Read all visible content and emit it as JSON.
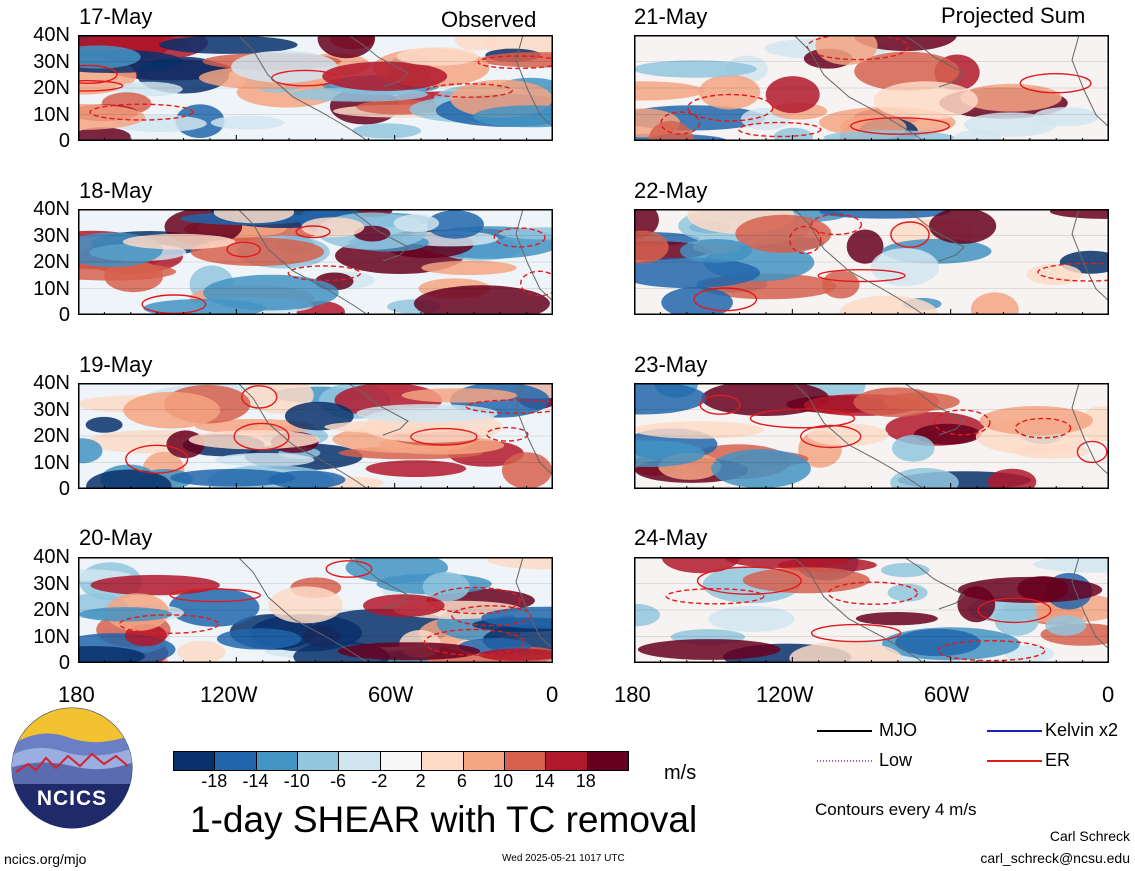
{
  "headers": {
    "observed": "Observed",
    "projected": "Projected Sum"
  },
  "panels": [
    {
      "date": "17-May"
    },
    {
      "date": "18-May"
    },
    {
      "date": "19-May"
    },
    {
      "date": "20-May"
    },
    {
      "date": "21-May"
    },
    {
      "date": "22-May"
    },
    {
      "date": "23-May"
    },
    {
      "date": "24-May"
    }
  ],
  "lat_ticks": [
    "40N",
    "30N",
    "20N",
    "10N",
    "0"
  ],
  "lon_ticks": [
    "180",
    "120W",
    "60W",
    "0"
  ],
  "colorbar": {
    "ticks": [
      "-18",
      "-14",
      "-10",
      "-6",
      "-2",
      "2",
      "6",
      "10",
      "14",
      "18"
    ],
    "colors": [
      "#08306b",
      "#2166ac",
      "#4393c3",
      "#92c5de",
      "#d1e5f0",
      "#f7f7f7",
      "#fddbc7",
      "#f4a582",
      "#d6604d",
      "#b2182b",
      "#67001f"
    ],
    "units": "m/s"
  },
  "title": "1-day SHEAR with TC removal",
  "legend": {
    "items": [
      {
        "label": "MJO",
        "color": "#000000",
        "style": "solid"
      },
      {
        "label": "Kelvin x2",
        "color": "#1f1fbf",
        "style": "solid"
      },
      {
        "label": "Low",
        "color": "#a855f7",
        "style": "dotted"
      },
      {
        "label": "ER",
        "color": "#e31a1c",
        "style": "solid"
      }
    ],
    "contours_note": "Contours every 4 m/s"
  },
  "logo": {
    "text": "NCICS"
  },
  "footer": {
    "url": "ncics.org/mjo",
    "timestamp": "Wed 2025-05-21 1017 UTC",
    "author": "Carl Schreck",
    "email": "carl_schreck@ncsu.edu"
  }
}
